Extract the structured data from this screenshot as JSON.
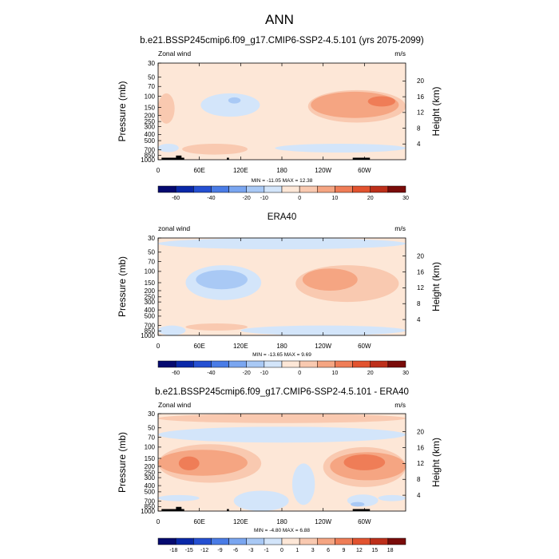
{
  "figure": {
    "title": "ANN"
  },
  "colors": {
    "scale": [
      "#050a70",
      "#0a28a8",
      "#2550d2",
      "#4a7ce6",
      "#7aa6f0",
      "#a9c9f5",
      "#d3e5fa",
      "#fde7d7",
      "#f9c9b0",
      "#f5a582",
      "#ef7d57",
      "#e2532f",
      "#bd2f1a",
      "#7a0c0a"
    ],
    "topo": "#000000"
  },
  "chart_data": [
    {
      "type": "heatmap",
      "title": "b.e21.BSSP245cmip6.f09_g17.CMIP6-SSP2-4.5.101 (yrs 2075-2099)",
      "left_label": "Zonal wind",
      "right_label": "m/s",
      "ylabel": "Pressure (mb)",
      "y2label": "Height (km)",
      "xticks": [
        "0",
        "60E",
        "120E",
        "180",
        "120W",
        "60W"
      ],
      "yticks": [
        "30",
        "50",
        "70",
        "100",
        "150",
        "200",
        "250",
        "300",
        "400",
        "500",
        "700",
        "850",
        "1000"
      ],
      "y2ticks": [
        "20",
        "16",
        "12",
        "8",
        "4"
      ],
      "ylim": [
        1000,
        30
      ],
      "xlim": [
        0,
        360
      ],
      "minmax": "MIN = -11.05  MAX =  12.38",
      "stats": {
        "min": -11.05,
        "max": 12.38
      },
      "colorbar_labels": [
        "-60",
        "-40",
        "-20",
        "-10",
        "0",
        "10",
        "20",
        "30"
      ],
      "colorbar_levels": [
        -70,
        -60,
        -50,
        -40,
        -30,
        -20,
        -10,
        -5,
        0,
        5,
        10,
        15,
        20,
        25,
        30
      ],
      "background": "#fde7d7",
      "regions": [
        {
          "x": [
            0,
            360
          ],
          "p": [
            200,
            30
          ],
          "color": "#fde7d7"
        },
        {
          "x": [
            62,
            148
          ],
          "p": [
            210,
            90
          ],
          "color": "#d3e5fa"
        },
        {
          "x": [
            102,
            120
          ],
          "p": [
            130,
            104
          ],
          "color": "#a9c9f5"
        },
        {
          "x": [
            218,
            360
          ],
          "p": [
            260,
            80
          ],
          "color": "#f9c9b0"
        },
        {
          "x": [
            222,
            350
          ],
          "p": [
            220,
            85
          ],
          "color": "#f5a582"
        },
        {
          "x": [
            305,
            345
          ],
          "p": [
            145,
            100
          ],
          "color": "#ef7d57"
        },
        {
          "x": [
            0,
            24
          ],
          "p": [
            270,
            90
          ],
          "color": "#f9c9b0"
        },
        {
          "x": [
            35,
            130
          ],
          "p": [
            830,
            560
          ],
          "color": "#f9c9b0"
        },
        {
          "x": [
            0,
            30
          ],
          "p": [
            760,
            560
          ],
          "color": "#d3e5fa"
        },
        {
          "x": [
            170,
            360
          ],
          "p": [
            770,
            560
          ],
          "color": "#d3e5fa"
        }
      ],
      "topo": [
        {
          "x": [
            5,
            38
          ],
          "p": [
            1000,
            930
          ]
        },
        {
          "x": [
            26,
            34
          ],
          "p": [
            1000,
            860
          ]
        },
        {
          "x": [
            100,
            103
          ],
          "p": [
            1000,
            930
          ]
        },
        {
          "x": [
            283,
            308
          ],
          "p": [
            1000,
            930
          ]
        }
      ]
    },
    {
      "type": "heatmap",
      "title": "ERA40",
      "left_label": "zonal wind",
      "right_label": "m/s",
      "ylabel": "Pressure (mb)",
      "y2label": "Height (km)",
      "xticks": [
        "0",
        "60E",
        "120E",
        "180",
        "120W",
        "60W"
      ],
      "yticks": [
        "30",
        "50",
        "70",
        "100",
        "150",
        "200",
        "250",
        "300",
        "400",
        "500",
        "700",
        "850",
        "1000"
      ],
      "y2ticks": [
        "20",
        "16",
        "12",
        "8",
        "4"
      ],
      "ylim": [
        1000,
        30
      ],
      "xlim": [
        0,
        360
      ],
      "minmax": "MIN = -13.65  MAX =   9.69",
      "stats": {
        "min": -13.65,
        "max": 9.69
      },
      "colorbar_labels": [
        "-60",
        "-40",
        "-20",
        "-10",
        "0",
        "10",
        "20",
        "30"
      ],
      "colorbar_levels": [
        -70,
        -60,
        -50,
        -40,
        -30,
        -20,
        -10,
        -5,
        0,
        5,
        10,
        15,
        20,
        25,
        30
      ],
      "background": "#fde7d7",
      "regions": [
        {
          "x": [
            0,
            360
          ],
          "p": [
            45,
            30
          ],
          "color": "#d3e5fa"
        },
        {
          "x": [
            40,
            150
          ],
          "p": [
            280,
            80
          ],
          "color": "#d3e5fa"
        },
        {
          "x": [
            55,
            130
          ],
          "p": [
            190,
            95
          ],
          "color": "#a9c9f5"
        },
        {
          "x": [
            200,
            350
          ],
          "p": [
            300,
            80
          ],
          "color": "#f9c9b0"
        },
        {
          "x": [
            210,
            290
          ],
          "p": [
            200,
            90
          ],
          "color": "#f5a582"
        },
        {
          "x": [
            40,
            130
          ],
          "p": [
            840,
            650
          ],
          "color": "#f9c9b0"
        },
        {
          "x": [
            0,
            40
          ],
          "p": [
            1000,
            700
          ],
          "color": "#d3e5fa"
        },
        {
          "x": [
            120,
            360
          ],
          "p": [
            1000,
            700
          ],
          "color": "#d3e5fa"
        }
      ],
      "topo": []
    },
    {
      "type": "heatmap",
      "title": "b.e21.BSSP245cmip6.f09_g17.CMIP6-SSP2-4.5.101 - ERA40",
      "left_label": "Zonal wind",
      "right_label": "m/s",
      "ylabel": "Pressure (mb)",
      "y2label": "Height (km)",
      "xticks": [
        "0",
        "60E",
        "120E",
        "180",
        "120W",
        "60W"
      ],
      "yticks": [
        "30",
        "50",
        "70",
        "100",
        "150",
        "200",
        "250",
        "300",
        "400",
        "500",
        "700",
        "850",
        "1000"
      ],
      "y2ticks": [
        "20",
        "16",
        "12",
        "8",
        "4"
      ],
      "ylim": [
        1000,
        30
      ],
      "xlim": [
        0,
        360
      ],
      "minmax": "MIN =  -4.80  MAX =   6.88",
      "stats": {
        "min": -4.8,
        "max": 6.88
      },
      "colorbar_labels": [
        "-18",
        "-15",
        "-12",
        "-9",
        "-6",
        "-3",
        "-1",
        "0",
        "1",
        "3",
        "6",
        "9",
        "12",
        "15",
        "18"
      ],
      "colorbar_levels": [
        -21,
        -18,
        -15,
        -12,
        -9,
        -6,
        -3,
        -1,
        0,
        1,
        3,
        6,
        9,
        12,
        15,
        18,
        21
      ],
      "background": "#fde7d7",
      "regions": [
        {
          "x": [
            0,
            360
          ],
          "p": [
            42,
            30
          ],
          "color": "#f9c9b0"
        },
        {
          "x": [
            0,
            360
          ],
          "p": [
            85,
            48
          ],
          "color": "#d3e5fa"
        },
        {
          "x": [
            0,
            150
          ],
          "p": [
            360,
            90
          ],
          "color": "#f9c9b0"
        },
        {
          "x": [
            0,
            130
          ],
          "p": [
            280,
            110
          ],
          "color": "#f5a582"
        },
        {
          "x": [
            30,
            60
          ],
          "p": [
            230,
            140
          ],
          "color": "#ef7d57"
        },
        {
          "x": [
            195,
            228
          ],
          "p": [
            800,
            180
          ],
          "color": "#d3e5fa"
        },
        {
          "x": [
            110,
            190
          ],
          "p": [
            1000,
            480
          ],
          "color": "#d3e5fa"
        },
        {
          "x": [
            240,
            360
          ],
          "p": [
            420,
            100
          ],
          "color": "#f9c9b0"
        },
        {
          "x": [
            250,
            360
          ],
          "p": [
            330,
            120
          ],
          "color": "#f5a582"
        },
        {
          "x": [
            270,
            330
          ],
          "p": [
            230,
            130
          ],
          "color": "#ef7d57"
        },
        {
          "x": [
            275,
            320
          ],
          "p": [
            850,
            550
          ],
          "color": "#d3e5fa"
        },
        {
          "x": [
            280,
            300
          ],
          "p": [
            850,
            720
          ],
          "color": "#a9c9f5"
        },
        {
          "x": [
            0,
            60
          ],
          "p": [
            700,
            560
          ],
          "color": "#d3e5fa"
        },
        {
          "x": [
            320,
            360
          ],
          "p": [
            700,
            560
          ],
          "color": "#d3e5fa"
        }
      ],
      "topo": [
        {
          "x": [
            5,
            38
          ],
          "p": [
            1000,
            930
          ]
        },
        {
          "x": [
            26,
            34
          ],
          "p": [
            1000,
            860
          ]
        },
        {
          "x": [
            100,
            103
          ],
          "p": [
            1000,
            930
          ]
        },
        {
          "x": [
            283,
            308
          ],
          "p": [
            1000,
            930
          ]
        }
      ]
    }
  ]
}
